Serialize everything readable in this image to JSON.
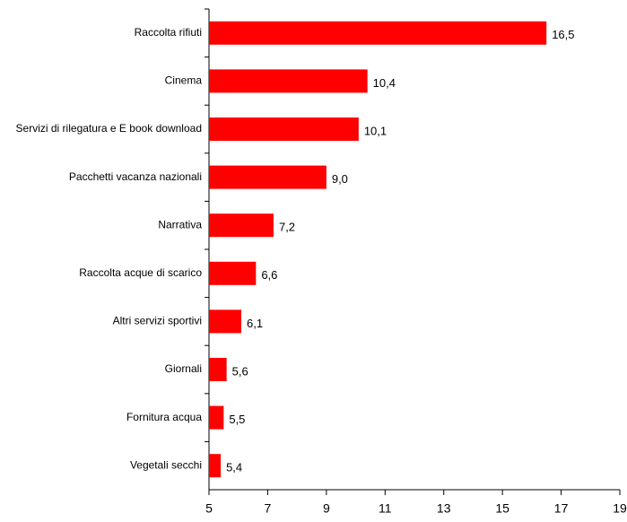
{
  "chart_data": {
    "type": "hbar",
    "categories": [
      "Raccolta rifiuti",
      "Cinema",
      "Servizi di rilegatura e E book download",
      "Pacchetti vacanza nazionali",
      "Narrativa",
      "Raccolta acque di scarico",
      "Altri servizi sportivi",
      "Giornali",
      "Fornitura acqua",
      "Vegetali secchi"
    ],
    "values": [
      16.5,
      10.4,
      10.1,
      9.0,
      7.2,
      6.6,
      6.1,
      5.6,
      5.5,
      5.4
    ],
    "value_labels": [
      "16,5",
      "10,4",
      "10,1",
      "9,0",
      "7,2",
      "6,6",
      "6,1",
      "5,6",
      "5,5",
      "5,4"
    ],
    "color": "#ff0000",
    "xlim": [
      5,
      19
    ],
    "xticks": [
      5,
      7,
      9,
      11,
      13,
      15,
      17,
      19
    ]
  }
}
